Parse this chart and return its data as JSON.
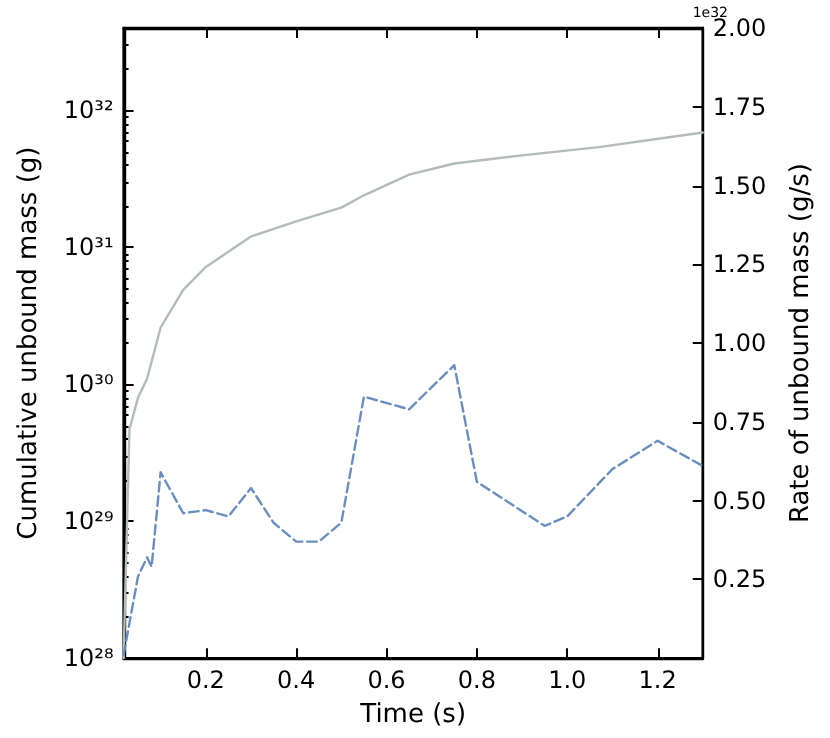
{
  "chart_data": {
    "type": "line",
    "xlabel": "Time (s)",
    "ylabel": "Cumulative unbound mass (g)",
    "y2label": "Rate of unbound mass (g/s)",
    "annotations": [
      "1e32"
    ],
    "series": [
      {
        "name": null,
        "color": "#b4bcb8",
        "line_style": "solid",
        "x": [
          0.018,
          0.031,
          0.05,
          0.07,
          0.1,
          0.15,
          0.2,
          0.3,
          0.4,
          0.5,
          0.55,
          0.65,
          0.75,
          0.9,
          1.07,
          1.3
        ],
        "values": [
          1e+28,
          4.7e+29,
          8e+29,
          1.1e+30,
          2.6e+30,
          4.9e+30,
          7.2e+30,
          1.2e+31,
          1.55e+31,
          1.95e+31,
          2.4e+31,
          3.4e+31,
          4.1e+31,
          4.7e+31,
          5.4e+31,
          6.9e+31
        ]
      },
      {
        "name": null,
        "color": "#6a8fbf",
        "line_style": "dashed",
        "axis": "y2",
        "x": [
          0.018,
          0.05,
          0.07,
          0.08,
          0.1,
          0.15,
          0.2,
          0.25,
          0.3,
          0.35,
          0.4,
          0.45,
          0.5,
          0.55,
          0.65,
          0.75,
          0.8,
          0.95,
          1.0,
          1.1,
          1.2,
          1.3
        ],
        "values": [
          0.01,
          0.26,
          0.32,
          0.29,
          0.59,
          0.46,
          0.47,
          0.45,
          0.54,
          0.43,
          0.37,
          0.37,
          0.43,
          0.83,
          0.79,
          0.93,
          0.56,
          0.42,
          0.45,
          0.6,
          0.69,
          0.61
        ]
      }
    ],
    "log": "y",
    "marker": "none",
    "grid": false,
    "xlim": [
      0.018,
      1.3
    ],
    "xticks": [
      0.2,
      0.4,
      0.6,
      0.8,
      {
        "value": 1.0,
        "label": "1.0"
      },
      1.2
    ],
    "ylim": [
      1e+28,
      4e+32
    ],
    "yticks": [
      {
        "value": 1e+28,
        "label": "10²⁸"
      },
      {
        "value": 1e+29,
        "label": "10²⁹"
      },
      {
        "value": 1e+30,
        "label": "10³⁰"
      },
      {
        "value": 1e+31,
        "label": "10³¹"
      },
      {
        "value": 1e+32,
        "label": "10³²"
      }
    ],
    "y2lim": [
      0,
      2
    ],
    "y2ticks": [
      {
        "value": 0.25,
        "label": "0.25"
      },
      {
        "value": 0.5,
        "label": "0.50"
      },
      {
        "value": 0.75,
        "label": "0.75"
      },
      {
        "value": 1,
        "label": "1.00"
      },
      {
        "value": 1.25,
        "label": "1.25"
      },
      {
        "value": 1.5,
        "label": "1.50"
      },
      {
        "value": 1.75,
        "label": "1.75"
      },
      {
        "value": 2,
        "label": "2.00"
      }
    ]
  }
}
